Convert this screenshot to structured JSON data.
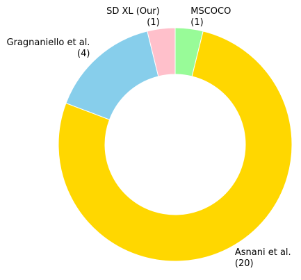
{
  "chart_data": {
    "type": "donut",
    "categories": [
      "MSCOCO",
      "Asnani et al.",
      "Gragnaniello et al.",
      "SD XL (Our)"
    ],
    "values": [
      1,
      20,
      4,
      1
    ],
    "value_labels": [
      "(1)",
      "(20)",
      "(4)",
      "(1)"
    ],
    "colors": [
      "#98fb98",
      "#ffd700",
      "#87ceeb",
      "#ffc0cb"
    ]
  }
}
